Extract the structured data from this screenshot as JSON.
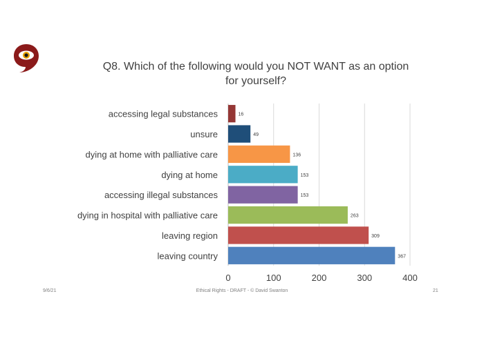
{
  "slide": {
    "title_line1": "Q8. Which of the following would you NOT WANT as an option",
    "title_line2": "for yourself?",
    "footer_date": "9/6/21",
    "footer_center": "Ethical Rights  -  DRAFT  -  © David Swanton",
    "page_number": "21"
  },
  "chart_data": {
    "type": "bar",
    "orientation": "horizontal",
    "title": "Q8. Which of the following would you NOT WANT as an option for yourself?",
    "categories": [
      "accessing legal substances",
      "unsure",
      "dying at home with palliative care",
      "dying at home",
      "accessing illegal substances ",
      "dying in hospital with palliative care",
      "leaving region",
      "leaving country "
    ],
    "values": [
      16,
      49,
      136,
      153,
      153,
      263,
      309,
      367
    ],
    "colors": [
      "#953735",
      "#1f4e79",
      "#f79646",
      "#4bacc6",
      "#8064a2",
      "#9bbb59",
      "#c0504d",
      "#4f81bd"
    ],
    "xlim": [
      0,
      400
    ],
    "xticks": [
      0,
      100,
      200,
      300,
      400
    ],
    "grid": true,
    "data_labels": true,
    "legend": "none"
  },
  "logo": {
    "color": "#8b1a1a",
    "icon": "eye-speech-bubble-logo"
  }
}
